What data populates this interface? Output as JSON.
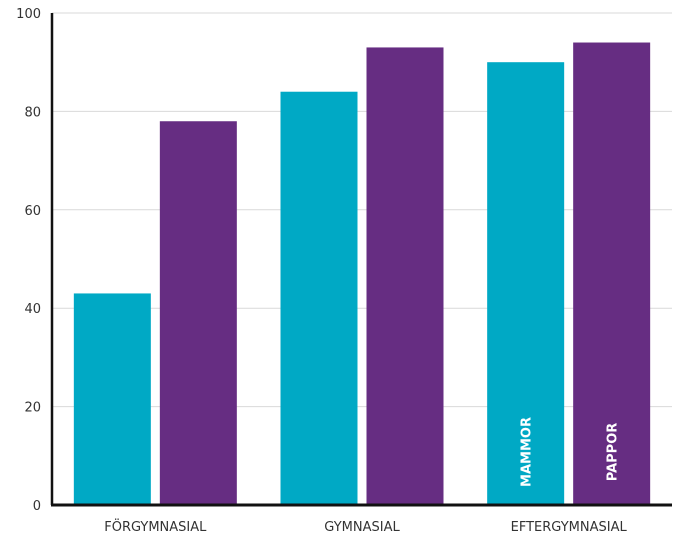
{
  "chart_data": {
    "type": "bar",
    "title": "",
    "xlabel": "",
    "ylabel": "",
    "ylim": [
      0,
      100
    ],
    "yticks": [
      0,
      20,
      40,
      60,
      80,
      100
    ],
    "grid": true,
    "categories": [
      "FÖRGYMNASIAL",
      "GYMNASIAL",
      "EFTERGYMNASIAL"
    ],
    "series": [
      {
        "name": "MAMMOR",
        "color": "#00a9c5",
        "values": [
          43,
          84,
          90
        ]
      },
      {
        "name": "PAPPOR",
        "color": "#662d82",
        "values": [
          78,
          93,
          94
        ]
      }
    ],
    "series_labels_inside_bars_of": "EFTERGYMNASIAL"
  }
}
